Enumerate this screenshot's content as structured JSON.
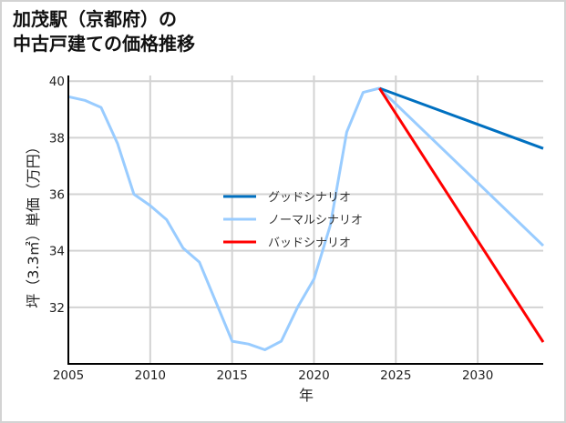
{
  "chart_data": {
    "type": "line",
    "title": "加茂駅（京都府）の\n中古戸建ての価格推移",
    "title_lines": [
      "加茂駅（京都府）の",
      "中古戸建ての価格推移"
    ],
    "xlabel": "年",
    "ylabel": "坪（3.3㎡）単価（万円）",
    "xlim": [
      2005,
      2034
    ],
    "ylim": [
      30.0,
      40.2
    ],
    "xticks": [
      2005,
      2010,
      2015,
      2020,
      2025,
      2030
    ],
    "yticks": [
      32,
      34,
      36,
      38,
      40
    ],
    "grid": true,
    "legend_position": "center",
    "series": [
      {
        "name": "ノーマルシナリオ",
        "role": "historical",
        "color": "#99ccff",
        "x": [
          2005,
          2006,
          2007,
          2008,
          2009,
          2010,
          2011,
          2012,
          2013,
          2014,
          2015,
          2016,
          2017,
          2018,
          2019,
          2020,
          2021,
          2022,
          2023,
          2024
        ],
        "values": [
          39.45,
          39.32,
          39.07,
          37.8,
          36.0,
          35.6,
          35.1,
          34.1,
          33.6,
          32.2,
          30.8,
          30.7,
          30.5,
          30.8,
          32.0,
          33.0,
          34.9,
          38.2,
          39.6,
          39.75
        ]
      },
      {
        "name": "グッドシナリオ",
        "color": "#0070c0",
        "x": [
          2024,
          2034
        ],
        "values": [
          39.75,
          37.62
        ]
      },
      {
        "name": "ノーマルシナリオ",
        "color": "#99ccff",
        "x": [
          2024,
          2034
        ],
        "values": [
          39.75,
          34.18
        ]
      },
      {
        "name": "バッドシナリオ",
        "color": "#ff0000",
        "x": [
          2024,
          2034
        ],
        "values": [
          39.75,
          30.77
        ]
      }
    ]
  },
  "legend": {
    "items": [
      {
        "label": "グッドシナリオ",
        "color": "#0070c0"
      },
      {
        "label": "ノーマルシナリオ",
        "color": "#99ccff"
      },
      {
        "label": "バッドシナリオ",
        "color": "#ff0000"
      }
    ]
  },
  "colors": {
    "grid": "#d3d3d3",
    "axis": "#000000",
    "frame": "#d3d3d3"
  }
}
